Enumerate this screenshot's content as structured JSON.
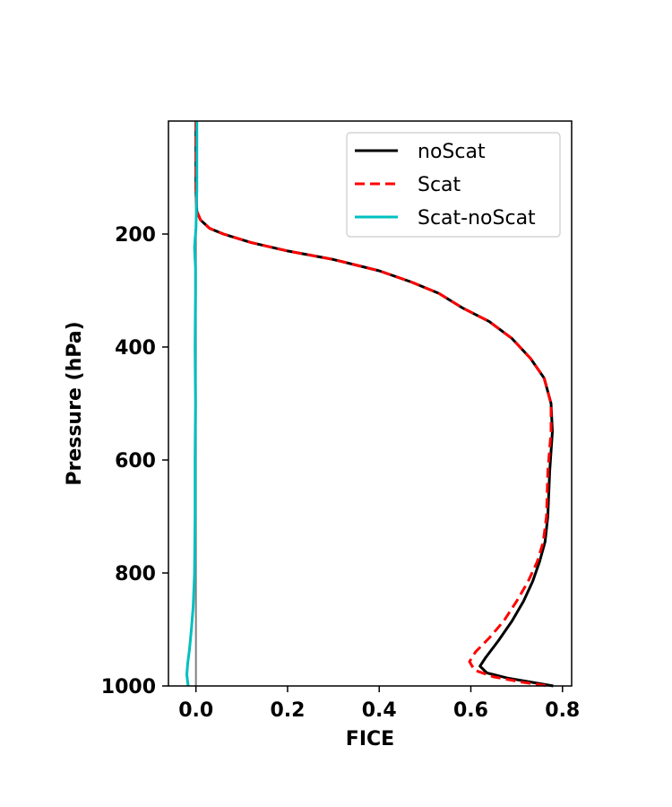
{
  "chart_data": {
    "type": "line",
    "xlabel": "FICE",
    "ylabel": "Pressure (hPa)",
    "xlim": [
      -0.06,
      0.82
    ],
    "ylim": [
      1000,
      0
    ],
    "xticks": [
      0.0,
      0.2,
      0.4,
      0.6,
      0.8
    ],
    "xtick_labels": [
      "0.0",
      "0.2",
      "0.4",
      "0.6",
      "0.8"
    ],
    "yticks": [
      200,
      400,
      600,
      800,
      1000
    ],
    "ytick_labels": [
      "200",
      "400",
      "600",
      "800",
      "1000"
    ],
    "reference_line_x": 0.0,
    "legend_position": "upper right",
    "grid": false,
    "series": [
      {
        "name": "noScat",
        "color": "#000000",
        "style": "solid",
        "points": [
          [
            0.0,
            0
          ],
          [
            0.0,
            120
          ],
          [
            0.002,
            160
          ],
          [
            0.01,
            175
          ],
          [
            0.03,
            190
          ],
          [
            0.06,
            200
          ],
          [
            0.12,
            215
          ],
          [
            0.2,
            230
          ],
          [
            0.3,
            245
          ],
          [
            0.4,
            265
          ],
          [
            0.47,
            285
          ],
          [
            0.53,
            305
          ],
          [
            0.58,
            330
          ],
          [
            0.64,
            355
          ],
          [
            0.69,
            385
          ],
          [
            0.73,
            420
          ],
          [
            0.76,
            455
          ],
          [
            0.775,
            500
          ],
          [
            0.778,
            550
          ],
          [
            0.772,
            620
          ],
          [
            0.768,
            700
          ],
          [
            0.762,
            745
          ],
          [
            0.75,
            780
          ],
          [
            0.735,
            815
          ],
          [
            0.715,
            850
          ],
          [
            0.69,
            885
          ],
          [
            0.66,
            920
          ],
          [
            0.632,
            950
          ],
          [
            0.62,
            965
          ],
          [
            0.635,
            977
          ],
          [
            0.68,
            986
          ],
          [
            0.73,
            993
          ],
          [
            0.78,
            1000
          ]
        ]
      },
      {
        "name": "Scat",
        "color": "#ff0000",
        "style": "dashed",
        "points": [
          [
            0.0,
            0
          ],
          [
            0.0,
            120
          ],
          [
            0.002,
            160
          ],
          [
            0.01,
            175
          ],
          [
            0.03,
            190
          ],
          [
            0.06,
            200
          ],
          [
            0.12,
            215
          ],
          [
            0.2,
            230
          ],
          [
            0.3,
            245
          ],
          [
            0.4,
            265
          ],
          [
            0.47,
            285
          ],
          [
            0.53,
            305
          ],
          [
            0.58,
            330
          ],
          [
            0.64,
            355
          ],
          [
            0.69,
            385
          ],
          [
            0.73,
            420
          ],
          [
            0.76,
            455
          ],
          [
            0.775,
            500
          ],
          [
            0.775,
            550
          ],
          [
            0.768,
            620
          ],
          [
            0.765,
            700
          ],
          [
            0.758,
            745
          ],
          [
            0.745,
            780
          ],
          [
            0.725,
            815
          ],
          [
            0.7,
            850
          ],
          [
            0.672,
            885
          ],
          [
            0.64,
            915
          ],
          [
            0.61,
            940
          ],
          [
            0.597,
            957
          ],
          [
            0.608,
            972
          ],
          [
            0.65,
            984
          ],
          [
            0.71,
            993
          ],
          [
            0.77,
            1000
          ]
        ]
      },
      {
        "name": "Scat-noScat",
        "color": "#00bfbf",
        "style": "solid",
        "points": [
          [
            0.002,
            0
          ],
          [
            0.002,
            120
          ],
          [
            0.001,
            160
          ],
          [
            0.0,
            190
          ],
          [
            -0.002,
            210
          ],
          [
            -0.003,
            225
          ],
          [
            -0.001,
            260
          ],
          [
            -0.001,
            300
          ],
          [
            -0.002,
            400
          ],
          [
            -0.001,
            500
          ],
          [
            -0.002,
            600
          ],
          [
            -0.002,
            700
          ],
          [
            -0.003,
            800
          ],
          [
            -0.006,
            860
          ],
          [
            -0.01,
            900
          ],
          [
            -0.014,
            935
          ],
          [
            -0.018,
            960
          ],
          [
            -0.02,
            980
          ],
          [
            -0.017,
            1000
          ]
        ]
      }
    ]
  }
}
